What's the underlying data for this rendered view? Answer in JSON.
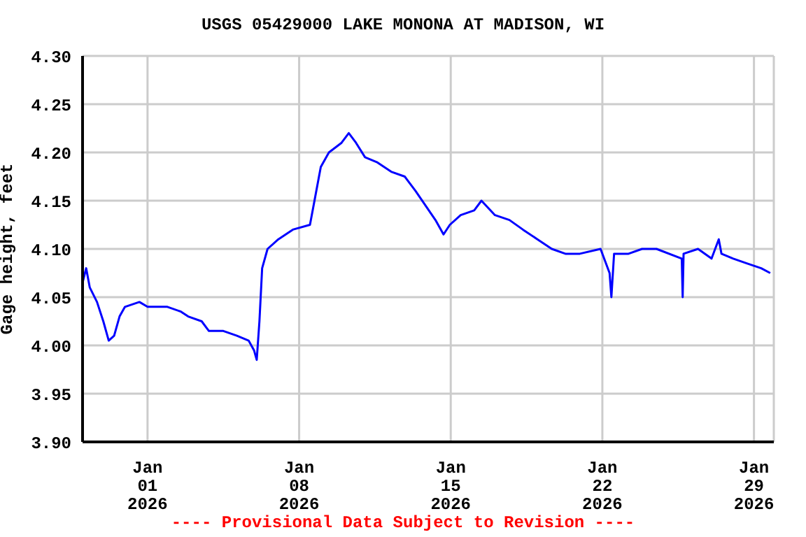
{
  "chart_data": {
    "type": "line",
    "title": "USGS 05429000 LAKE MONONA AT MADISON, WI",
    "ylabel": "Gage height, feet",
    "annotations": [
      "---- Provisional Data Subject to Revision ----"
    ],
    "xlim": [
      "2025-12-29T00:00",
      "2026-01-29T22:00"
    ],
    "xticks": [
      {
        "value": "2026-01-01",
        "label": "Jan\n01\n2026"
      },
      {
        "value": "2026-01-08",
        "label": "Jan\n08\n2026"
      },
      {
        "value": "2026-01-15",
        "label": "Jan\n15\n2026"
      },
      {
        "value": "2026-01-22",
        "label": "Jan\n22\n2026"
      },
      {
        "value": "2026-01-29",
        "label": "Jan\n29\n2026"
      }
    ],
    "ylim": [
      3.9,
      4.3
    ],
    "yticks": [
      {
        "value": 3.9,
        "label": "3.90"
      },
      {
        "value": 3.95,
        "label": "3.95"
      },
      {
        "value": 4.0,
        "label": "4.00"
      },
      {
        "value": 4.05,
        "label": "4.05"
      },
      {
        "value": 4.1,
        "label": "4.10"
      },
      {
        "value": 4.15,
        "label": "4.15"
      },
      {
        "value": 4.2,
        "label": "4.20"
      },
      {
        "value": 4.25,
        "label": "4.25"
      },
      {
        "value": 4.3,
        "label": "4.30"
      }
    ],
    "grid": true,
    "marker": "none",
    "line_style": "solid",
    "x": [
      "2025-12-29T00:00",
      "2025-12-29T04:00",
      "2025-12-29T08:00",
      "2025-12-29T16:00",
      "2025-12-29T23:00",
      "2025-12-30T05:00",
      "2025-12-30T11:00",
      "2025-12-30T17:00",
      "2025-12-30T23:00",
      "2025-12-31T15:00",
      "2026-01-01T00:00",
      "2026-01-01T22:00",
      "2026-01-02T13:00",
      "2026-01-02T21:00",
      "2026-01-03T12:00",
      "2026-01-03T20:00",
      "2026-01-04T12:00",
      "2026-01-05T03:00",
      "2026-01-05T16:00",
      "2026-01-05T22:00",
      "2026-01-06T01:00",
      "2026-01-06T04:00",
      "2026-01-06T07:00",
      "2026-01-06T13:00",
      "2026-01-07T01:00",
      "2026-01-07T17:00",
      "2026-01-08T12:00",
      "2026-01-08T18:00",
      "2026-01-09T00:00",
      "2026-01-09T09:00",
      "2026-01-09T23:00",
      "2026-01-10T07:00",
      "2026-01-10T15:00",
      "2026-01-11T01:00",
      "2026-01-11T14:00",
      "2026-01-12T06:00",
      "2026-01-12T21:00",
      "2026-01-13T09:00",
      "2026-01-13T20:00",
      "2026-01-14T07:00",
      "2026-01-14T16:00",
      "2026-01-14T23:00",
      "2026-01-15T11:00",
      "2026-01-16T02:00",
      "2026-01-16T10:00",
      "2026-01-17T01:00",
      "2026-01-17T17:00",
      "2026-01-18T08:00",
      "2026-01-19T00:00",
      "2026-01-19T16:00",
      "2026-01-20T07:00",
      "2026-01-20T23:00",
      "2026-01-21T22:00",
      "2026-01-22T08:00",
      "2026-01-22T10:00",
      "2026-01-22T13:00",
      "2026-01-23T05:00",
      "2026-01-23T20:00",
      "2026-01-24T12:00",
      "2026-01-25T16:00",
      "2026-01-25T17:00",
      "2026-01-25T18:00",
      "2026-01-26T10:00",
      "2026-01-27T01:00",
      "2026-01-27T09:00",
      "2026-01-27T12:00",
      "2026-01-28T01:00",
      "2026-01-28T16:00",
      "2026-01-29T08:00",
      "2026-01-29T18:00"
    ],
    "series": [
      {
        "color": "#0000ff",
        "values": [
          4.065,
          4.08,
          4.06,
          4.045,
          4.025,
          4.005,
          4.01,
          4.03,
          4.04,
          4.045,
          4.04,
          4.04,
          4.035,
          4.03,
          4.025,
          4.015,
          4.015,
          4.01,
          4.005,
          3.995,
          3.985,
          4.025,
          4.08,
          4.1,
          4.11,
          4.12,
          4.125,
          4.155,
          4.185,
          4.2,
          4.21,
          4.22,
          4.21,
          4.195,
          4.19,
          4.18,
          4.175,
          4.16,
          4.145,
          4.13,
          4.115,
          4.125,
          4.135,
          4.14,
          4.15,
          4.135,
          4.13,
          4.12,
          4.11,
          4.1,
          4.095,
          4.095,
          4.1,
          4.075,
          4.05,
          4.095,
          4.095,
          4.1,
          4.1,
          4.09,
          4.05,
          4.095,
          4.1,
          4.09,
          4.11,
          4.095,
          4.09,
          4.085,
          4.08,
          4.075
        ]
      }
    ]
  }
}
